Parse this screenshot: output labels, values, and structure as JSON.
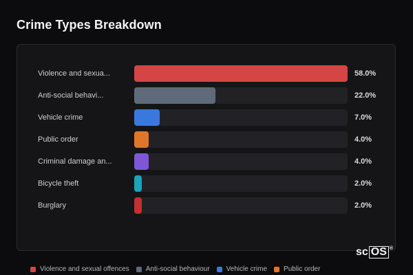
{
  "title": "Crime Types Breakdown",
  "chart_data": {
    "type": "bar",
    "orientation": "horizontal",
    "title": "Crime Types Breakdown",
    "categories": [
      "Violence and sexual offences",
      "Anti-social behaviour",
      "Vehicle crime",
      "Public order",
      "Criminal damage and arson",
      "Bicycle theft",
      "Burglary"
    ],
    "display_labels": [
      "Violence and sexua...",
      "Anti-social behavi...",
      "Vehicle crime",
      "Public order",
      "Criminal damage an...",
      "Bicycle theft",
      "Burglary"
    ],
    "values": [
      58.0,
      22.0,
      7.0,
      4.0,
      4.0,
      2.0,
      2.0
    ],
    "value_labels": [
      "58.0%",
      "22.0%",
      "7.0%",
      "4.0%",
      "4.0%",
      "2.0%",
      "2.0%"
    ],
    "colors": [
      "#d64545",
      "#5f6b7a",
      "#3b78de",
      "#e0762a",
      "#7e57d8",
      "#1ba3bf",
      "#c4302e"
    ],
    "xlim": [
      0,
      58
    ],
    "grid": false,
    "legend_position": "bottom"
  },
  "legend": [
    {
      "label": "Violence and sexual offences",
      "color": "#d64545"
    },
    {
      "label": "Anti-social behaviour",
      "color": "#5f6b7a"
    },
    {
      "label": "Vehicle crime",
      "color": "#3b78de"
    },
    {
      "label": "Public order",
      "color": "#e0762a"
    }
  ],
  "logo": {
    "prefix": "sc",
    "boxed": "OS",
    "mark": "®"
  }
}
